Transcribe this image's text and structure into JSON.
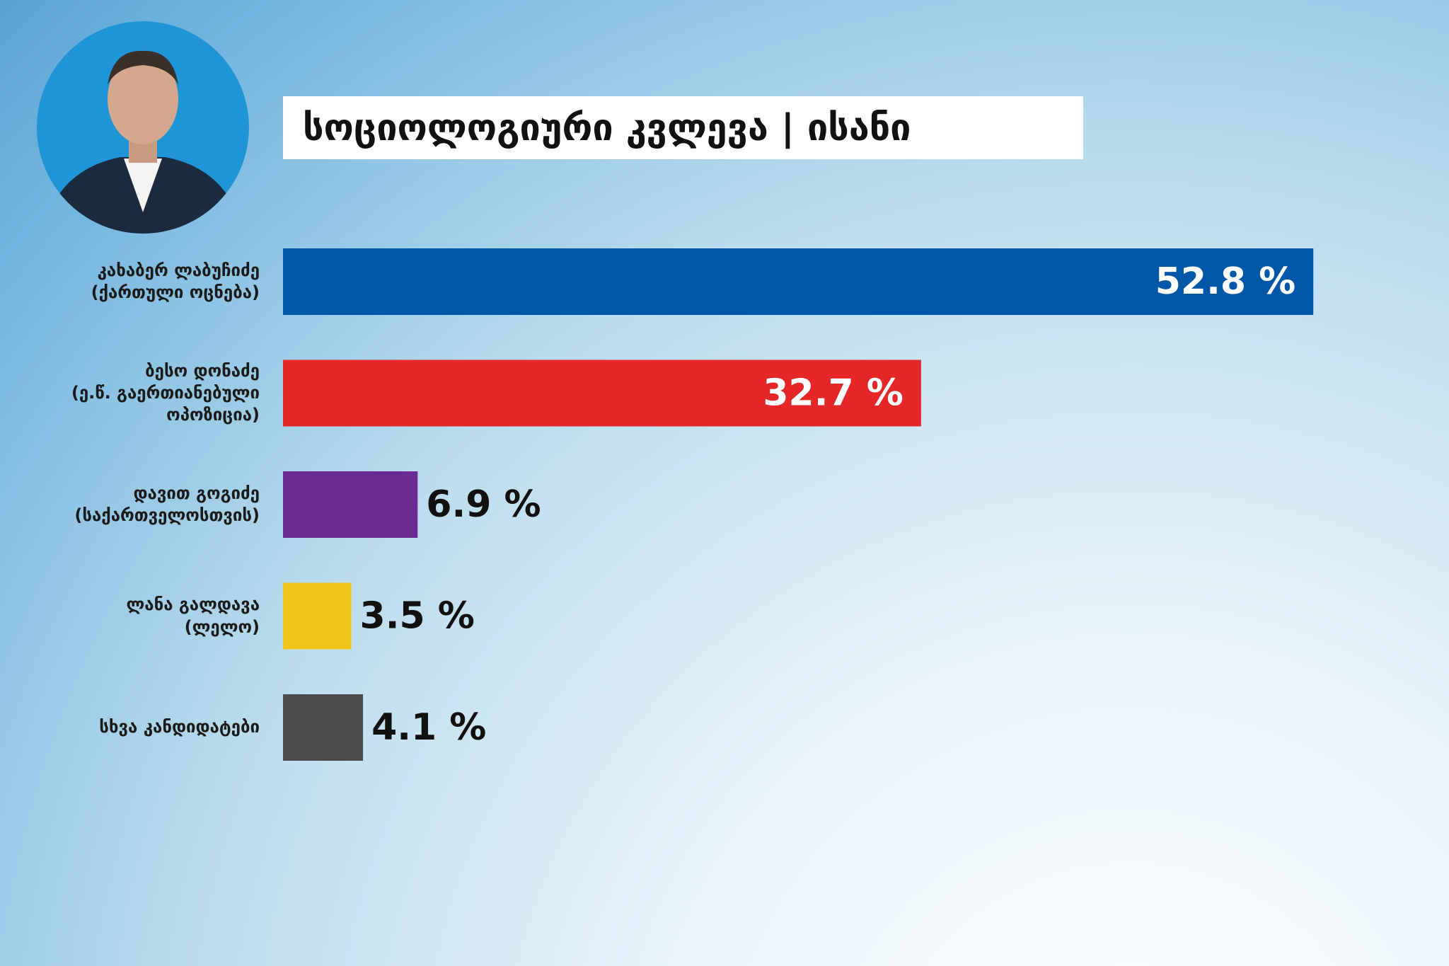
{
  "chart_data": {
    "type": "bar",
    "orientation": "horizontal",
    "title": "სოციოლოგიური კვლევა | ისანი",
    "categories": [
      "კახაბერ ლაბუჩიძე\n(ქართული ოცნება)",
      "ბესო დონაძე\n(ე.წ. გაერთიანებული\nოპოზიცია)",
      "დავით გოგიძე\n(საქართველოსთვის)",
      "ლანა გალდავა\n(ლელო)",
      "სხვა კანდიდატები"
    ],
    "values": [
      52.8,
      32.7,
      6.9,
      3.5,
      4.1
    ],
    "value_labels": [
      "52.8 %",
      "32.7 %",
      "6.9 %",
      "3.5 %",
      "4.1 %"
    ],
    "colors": [
      "#0057a8",
      "#e52727",
      "#6a2c91",
      "#f0c419",
      "#4d4d4d"
    ]
  }
}
